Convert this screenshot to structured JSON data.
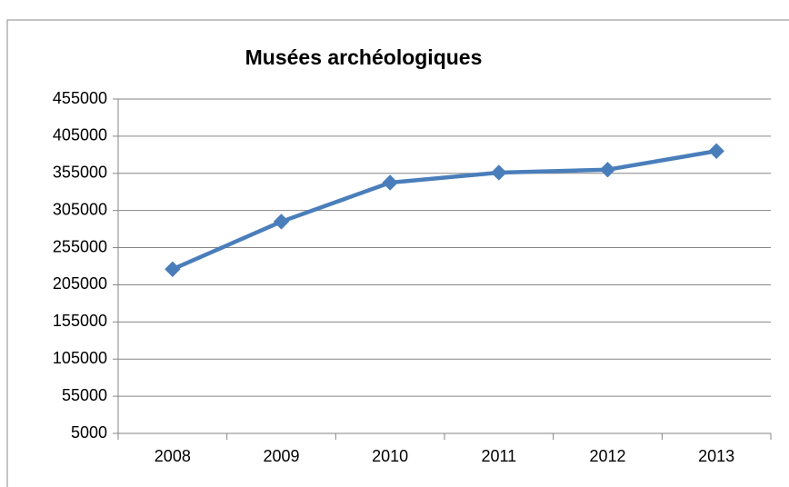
{
  "chart_data": {
    "type": "line",
    "title": "Musées archéologiques",
    "categories": [
      "2008",
      "2009",
      "2010",
      "2011",
      "2012",
      "2013"
    ],
    "series": [
      {
        "name": "Musées archéologiques",
        "color": "#4a7ebb",
        "values": [
          226000,
          290000,
          342500,
          356000,
          360000,
          385000
        ]
      }
    ],
    "ylim": [
      5000,
      455000
    ],
    "yticks": [
      5000,
      55000,
      105000,
      155000,
      205000,
      255000,
      305000,
      355000,
      405000,
      455000
    ],
    "grid": true
  }
}
